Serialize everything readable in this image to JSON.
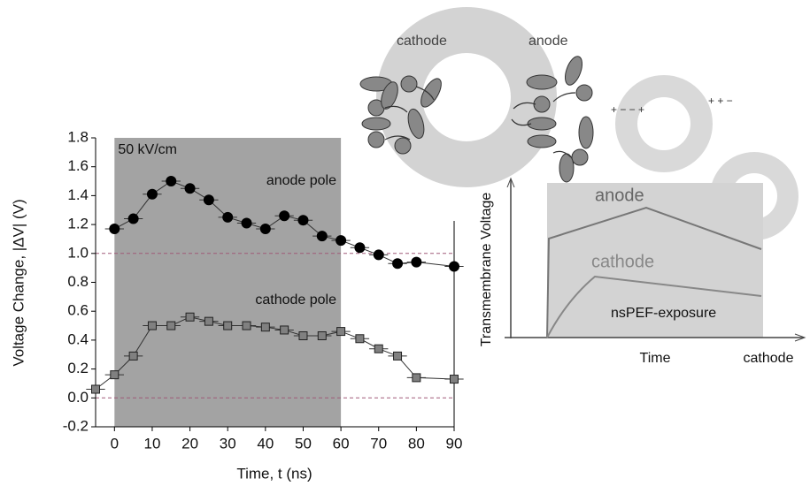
{
  "chart_data": {
    "type": "scatter",
    "xlabel": "Time, t (ns)",
    "ylabel": "Voltage Change, |ΔV| (V)",
    "xlim": [
      -5,
      90
    ],
    "xticks": [
      0,
      10,
      20,
      30,
      40,
      50,
      60,
      70,
      80,
      90
    ],
    "ylim": [
      -0.2,
      1.8
    ],
    "yticks": [
      -0.2,
      {
        "value": 0,
        "label": "0.0"
      },
      0.2,
      0.4,
      0.6,
      0.8,
      {
        "value": 1,
        "label": "1.0"
      },
      1.2,
      1.4,
      1.6,
      1.8
    ],
    "shaded_region": [
      0,
      60
    ],
    "shaded_label": "50 kV/cm",
    "reference_lines": [
      0,
      1
    ],
    "reference_color": "#a05a78",
    "series": [
      {
        "name": "anode pole",
        "color": "#000000",
        "marker": "circle",
        "xerr": 2.5,
        "x": [
          0,
          5,
          10,
          15,
          20,
          25,
          30,
          35,
          40,
          45,
          50,
          55,
          60,
          65,
          70,
          75,
          80,
          90
        ],
        "values": [
          1.17,
          1.24,
          1.41,
          1.5,
          1.45,
          1.37,
          1.25,
          1.21,
          1.17,
          1.26,
          1.23,
          1.12,
          1.09,
          1.04,
          0.99,
          0.93,
          0.94,
          0.91
        ]
      },
      {
        "name": "cathode pole",
        "color": "#808080",
        "marker": "square",
        "xerr": 2.5,
        "x": [
          -5,
          0,
          5,
          10,
          15,
          20,
          25,
          30,
          35,
          40,
          45,
          50,
          55,
          60,
          65,
          70,
          75,
          80,
          90
        ],
        "values": [
          0.06,
          0.16,
          0.29,
          0.5,
          0.5,
          0.56,
          0.53,
          0.5,
          0.5,
          0.49,
          0.47,
          0.43,
          0.43,
          0.46,
          0.41,
          0.34,
          0.29,
          0.14,
          0.13
        ]
      }
    ]
  },
  "diagram": {
    "ring_labels": [
      "cathode",
      "anode"
    ],
    "inset": {
      "y_label": "Transmembrane Voltage",
      "x_label": "Time",
      "curve_labels": [
        "anode",
        "cathode"
      ],
      "exposure_label": "nsPEF-exposure",
      "corner_label": "cathode"
    }
  }
}
